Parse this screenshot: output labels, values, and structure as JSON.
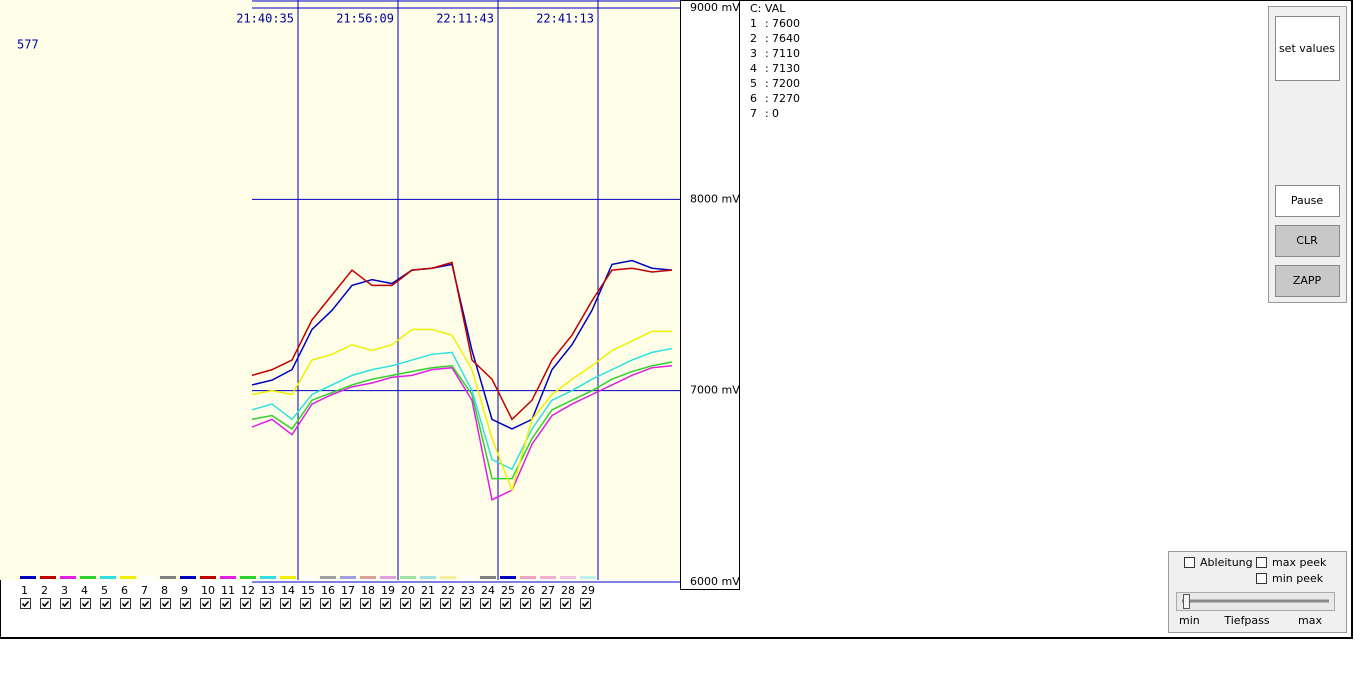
{
  "counter": 577,
  "chart_data": {
    "type": "line",
    "x": [
      0,
      1,
      2,
      3,
      4,
      5,
      6,
      7,
      8,
      9,
      10,
      11,
      12,
      13,
      14,
      15,
      16,
      17,
      18,
      19,
      20,
      21
    ],
    "xlim": [
      -12.6,
      21.4
    ],
    "xticks": [
      {
        "value": 2.3,
        "label": "21:40:35"
      },
      {
        "value": 7.3,
        "label": "21:56:09"
      },
      {
        "value": 12.3,
        "label": "22:11:43"
      },
      {
        "value": 17.3,
        "label": "22:41:13"
      }
    ],
    "ylim": [
      6000,
      9000
    ],
    "yticks": [
      {
        "value": 9000,
        "label": "9000 mV"
      },
      {
        "value": 8000,
        "label": "8000 mV"
      },
      {
        "value": 7000,
        "label": "7000 mV"
      },
      {
        "value": 6000,
        "label": "6000 mV"
      }
    ],
    "grid": true,
    "series": [
      {
        "name": "1",
        "color": "#0000c0",
        "values": [
          7030,
          7055,
          7110,
          7320,
          7420,
          7550,
          7580,
          7560,
          7630,
          7640,
          7660,
          7210,
          6850,
          6800,
          6850,
          7110,
          7240,
          7420,
          7660,
          7680,
          7640,
          7630
        ]
      },
      {
        "name": "2",
        "color": "#c00000",
        "values": [
          7080,
          7110,
          7160,
          7370,
          7500,
          7630,
          7550,
          7550,
          7630,
          7640,
          7670,
          7160,
          7060,
          6850,
          6950,
          7160,
          7290,
          7470,
          7630,
          7640,
          7620,
          7630
        ]
      },
      {
        "name": "3",
        "color": "#e020e0",
        "values": [
          6810,
          6850,
          6770,
          6930,
          6980,
          7020,
          7040,
          7070,
          7080,
          7110,
          7120,
          6950,
          6430,
          6480,
          6720,
          6870,
          6930,
          6980,
          7030,
          7080,
          7120,
          7130
        ]
      },
      {
        "name": "4",
        "color": "#30d030",
        "values": [
          6850,
          6870,
          6800,
          6950,
          6990,
          7030,
          7060,
          7080,
          7100,
          7120,
          7130,
          6980,
          6540,
          6540,
          6750,
          6900,
          6950,
          7000,
          7060,
          7100,
          7130,
          7150
        ]
      },
      {
        "name": "5",
        "color": "#30e0e0",
        "values": [
          6900,
          6930,
          6850,
          6980,
          7030,
          7080,
          7110,
          7130,
          7160,
          7190,
          7200,
          7000,
          6640,
          6590,
          6800,
          6950,
          7000,
          7060,
          7110,
          7160,
          7200,
          7220
        ]
      },
      {
        "name": "6",
        "color": "#f0f000",
        "values": [
          6980,
          7000,
          6980,
          7160,
          7190,
          7240,
          7210,
          7240,
          7320,
          7320,
          7290,
          7110,
          6750,
          6480,
          6850,
          6980,
          7060,
          7130,
          7210,
          7260,
          7310,
          7310
        ]
      }
    ]
  },
  "channels": [
    {
      "name": "1",
      "color": "#0000c0"
    },
    {
      "name": "2",
      "color": "#c00000"
    },
    {
      "name": "3",
      "color": "#e020e0"
    },
    {
      "name": "4",
      "color": "#30d030"
    },
    {
      "name": "5",
      "color": "#30e0e0"
    },
    {
      "name": "6",
      "color": "#f0f000"
    },
    {
      "name": "7",
      "color": "#ffffff"
    },
    {
      "name": "8",
      "color": "#808080"
    },
    {
      "name": "9",
      "color": "#0000c0"
    },
    {
      "name": "10",
      "color": "#c00000"
    },
    {
      "name": "11",
      "color": "#e020e0"
    },
    {
      "name": "12",
      "color": "#30d030"
    },
    {
      "name": "13",
      "color": "#30e0e0"
    },
    {
      "name": "14",
      "color": "#f0f000"
    },
    {
      "name": "15",
      "color": "#ffffff"
    },
    {
      "name": "16",
      "color": "#a0a0a0"
    },
    {
      "name": "17",
      "color": "#a0a0e0"
    },
    {
      "name": "18",
      "color": "#e0a0a0"
    },
    {
      "name": "19",
      "color": "#e0a0e0"
    },
    {
      "name": "20",
      "color": "#a0e0a0"
    },
    {
      "name": "21",
      "color": "#a0e0e0"
    },
    {
      "name": "22",
      "color": "#f0f0a0"
    },
    {
      "name": "23",
      "color": "#ffffff"
    },
    {
      "name": "24",
      "color": "#808080"
    },
    {
      "name": "25",
      "color": "#0000c0"
    },
    {
      "name": "26",
      "color": "#f0a0c0"
    },
    {
      "name": "27",
      "color": "#f0b0d0"
    },
    {
      "name": "28",
      "color": "#f0c0e0"
    },
    {
      "name": "29",
      "color": "#c0f0f0"
    }
  ],
  "readout": {
    "header": "C: VAL",
    "separator": ":",
    "rows": [
      {
        "channel": "1",
        "value": 7600
      },
      {
        "channel": "2",
        "value": 7640
      },
      {
        "channel": "3",
        "value": 7110
      },
      {
        "channel": "4",
        "value": 7130
      },
      {
        "channel": "5",
        "value": 7200
      },
      {
        "channel": "6",
        "value": 7270
      },
      {
        "channel": "7",
        "value": 0
      }
    ]
  },
  "buttons": {
    "set_values": "set values",
    "pause": "Pause",
    "clr": "CLR",
    "zapp": "ZAPP"
  },
  "options": {
    "ableitung": "Ableitung",
    "max_peek": "max peek",
    "min_peek": "min peek",
    "min": "min",
    "tiefpass": "Tiefpass",
    "max": "max"
  }
}
